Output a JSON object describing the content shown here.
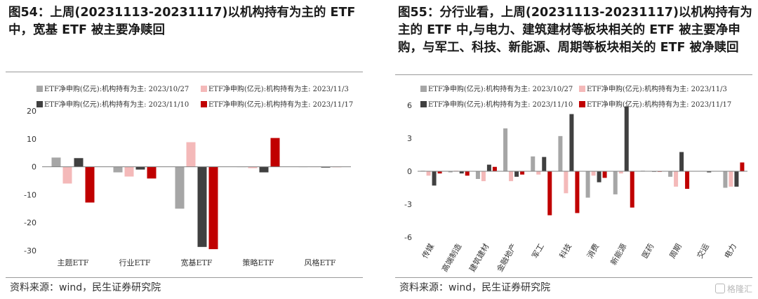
{
  "left": {
    "title": "图54：上周(20231113-20231117)以机构持有为主的 ETF 中，宽基 ETF 被主要净赎回",
    "source": "资料来源：wind，民生证券研究院"
  },
  "right": {
    "title": "图55：分行业看，上周(20231113-20231117)以机构持有为主的 ETF 中,与电力、建筑建材等板块相关的 ETF 被主要净申购，与军工、科技、新能源、周期等板块相关的 ETF 被净赎回",
    "source": "资料来源：wind，民生证券研究院"
  },
  "watermark": "格隆汇",
  "chart_data": [
    {
      "type": "bar",
      "categories": [
        "主题ETF",
        "行业ETF",
        "宽基ETF",
        "策略ETF",
        "风格ETF"
      ],
      "ylim": [
        -30,
        20
      ],
      "yticks": [
        20,
        10,
        0,
        -10,
        -20,
        -30
      ],
      "grid": false,
      "legend_position": "top",
      "series": [
        {
          "name": "ETF净申购(亿元):机构持有为主: 2023/10/27",
          "color": "#a6a6a6",
          "values": [
            3.3,
            -2.0,
            -15.0,
            -0.1,
            -0.1
          ]
        },
        {
          "name": "ETF净申购(亿元):机构持有为主: 2023/11/3",
          "color": "#f4b9b9",
          "values": [
            -6.0,
            -3.5,
            8.8,
            -0.5,
            -0.1
          ]
        },
        {
          "name": "ETF净申购(亿元):机构持有为主: 2023/11/10",
          "color": "#404040",
          "values": [
            3.1,
            -1.0,
            -28.7,
            -2.0,
            -0.3
          ]
        },
        {
          "name": "ETF净申购(亿元):机构持有为主: 2023/11/17",
          "color": "#c00000",
          "values": [
            -12.8,
            -4.2,
            -29.5,
            10.3,
            -0.1
          ]
        }
      ]
    },
    {
      "type": "bar",
      "categories": [
        "传媒",
        "高端制造",
        "建筑建材",
        "金融地产",
        "军工",
        "科技",
        "消费",
        "新能源",
        "医药",
        "周期",
        "交运",
        "电力"
      ],
      "ylim": [
        -6,
        6
      ],
      "yticks": [
        6,
        3,
        0,
        -3,
        -6
      ],
      "grid": false,
      "legend_position": "top",
      "series": [
        {
          "name": "ETF净申购(亿元):机构持有为主: 2023/10/27",
          "color": "#a6a6a6",
          "values": [
            0.05,
            -0.1,
            -0.7,
            3.9,
            1.35,
            3.2,
            -2.4,
            -2.1,
            0.05,
            -0.5,
            0.0,
            -1.5
          ]
        },
        {
          "name": "ETF净申购(亿元):机构持有为主: 2023/11/3",
          "color": "#f4b9b9",
          "values": [
            -0.4,
            0.05,
            -0.9,
            -0.9,
            -0.3,
            -2.0,
            -0.4,
            -0.2,
            0.0,
            -1.4,
            0.0,
            -1.4
          ]
        },
        {
          "name": "ETF净申购(亿元):机构持有为主: 2023/11/10",
          "color": "#404040",
          "values": [
            -1.3,
            -0.2,
            0.6,
            -0.5,
            1.3,
            5.2,
            -1.0,
            5.9,
            -0.05,
            1.75,
            -0.1,
            -1.4
          ]
        },
        {
          "name": "ETF净申购(亿元):机构持有为主: 2023/11/17",
          "color": "#c00000",
          "values": [
            -0.2,
            -0.4,
            0.4,
            -0.3,
            -4.0,
            -3.8,
            -0.6,
            -3.3,
            -0.05,
            -1.6,
            0.0,
            0.8
          ]
        }
      ]
    }
  ]
}
